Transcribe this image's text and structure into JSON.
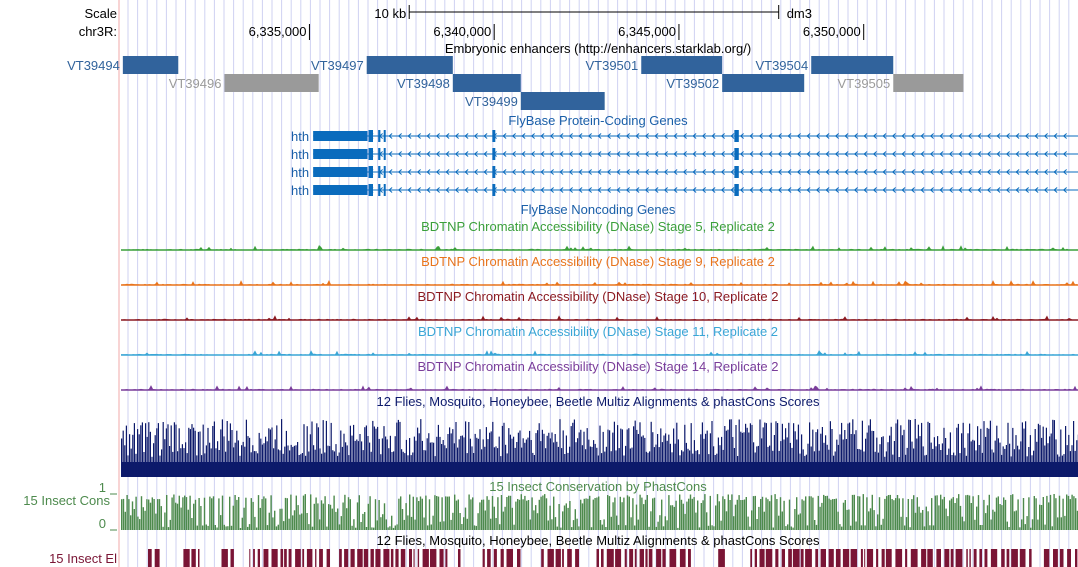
{
  "header": {
    "scale_label": "Scale",
    "scale_bar_label": "10 kb",
    "assembly": "dm3",
    "chrom_label": "chr3R:"
  },
  "chart_data": {
    "type": "genome-browser",
    "chrom": "chr3R",
    "x_range": [
      6329900,
      6355800
    ],
    "ticks": [
      {
        "pos": 6335000,
        "label": "6,335,000"
      },
      {
        "pos": 6340000,
        "label": "6,340,000"
      },
      {
        "pos": 6345000,
        "label": "6,345,000"
      },
      {
        "pos": 6350000,
        "label": "6,350,000"
      }
    ],
    "scale_bar": {
      "start": 6337700,
      "end": 6347700
    },
    "enhancer_track": {
      "title": "Embryonic enhancers (http://enhancers.starklab.org/)",
      "features": [
        {
          "name": "VT39494",
          "start": 6329950,
          "end": 6331450,
          "row": 0,
          "active": true
        },
        {
          "name": "VT39496",
          "start": 6332700,
          "end": 6335250,
          "row": 1,
          "active": false
        },
        {
          "name": "VT39497",
          "start": 6336550,
          "end": 6338880,
          "row": 0,
          "active": true
        },
        {
          "name": "VT39498",
          "start": 6338880,
          "end": 6340720,
          "row": 1,
          "active": true
        },
        {
          "name": "VT39499",
          "start": 6340720,
          "end": 6342990,
          "row": 2,
          "active": true
        },
        {
          "name": "VT39501",
          "start": 6343980,
          "end": 6346170,
          "row": 0,
          "active": true
        },
        {
          "name": "VT39502",
          "start": 6346170,
          "end": 6348390,
          "row": 1,
          "active": true
        },
        {
          "name": "VT39504",
          "start": 6348580,
          "end": 6350800,
          "row": 0,
          "active": true
        },
        {
          "name": "VT39505",
          "start": 6350800,
          "end": 6352700,
          "row": 1,
          "active": false
        }
      ]
    },
    "coding_genes": {
      "title": "FlyBase Protein-Coding Genes",
      "transcripts": [
        {
          "name": "hth",
          "start": 6335100,
          "end": 6355800
        },
        {
          "name": "hth",
          "start": 6335100,
          "end": 6355800
        },
        {
          "name": "hth",
          "start": 6335100,
          "end": 6355800
        },
        {
          "name": "hth",
          "start": 6335100,
          "end": 6355800
        }
      ],
      "exons": [
        {
          "start": 6335100,
          "end": 6336570
        },
        {
          "start": 6336600,
          "end": 6336720
        },
        {
          "start": 6336860,
          "end": 6336920
        },
        {
          "start": 6337010,
          "end": 6337060
        },
        {
          "start": 6339950,
          "end": 6340030
        },
        {
          "start": 6346500,
          "end": 6346620
        }
      ]
    },
    "noncoding_genes": {
      "title": "FlyBase Noncoding Genes"
    },
    "dnase_tracks": [
      {
        "title": "BDTNP Chromatin Accessibility (DNase) Stage 5, Replicate 2",
        "color": "#3a9f3a"
      },
      {
        "title": "BDTNP Chromatin Accessibility (DNase) Stage 9, Replicate 2",
        "color": "#e8741c"
      },
      {
        "title": "BDTNP Chromatin Accessibility (DNase) Stage 10, Replicate 2",
        "color": "#8b1a22"
      },
      {
        "title": "BDTNP Chromatin Accessibility (DNase) Stage 11, Replicate 2",
        "color": "#3aa6d6"
      },
      {
        "title": "BDTNP Chromatin Accessibility (DNase) Stage 14, Replicate 2",
        "color": "#7a3d9a"
      }
    ],
    "multiz_track": {
      "title": "12 Flies, Mosquito, Honeybee, Beetle Multiz Alignments & phastCons Scores",
      "color": "#0d1a6b"
    },
    "cons_track": {
      "title": "15 Insect Conservation by PhastCons",
      "label": "15 Insect Cons",
      "y_max_label": "1",
      "y_min_label": "0",
      "color": "#4d8a4d"
    },
    "elements_track": {
      "title": "12 Flies, Mosquito, Honeybee, Beetle Multiz Alignments & phastCons Scores",
      "label": "15 Insect El",
      "color": "#7a1535"
    }
  },
  "colors": {
    "enhancer_active": "#31639c",
    "enhancer_inactive": "#9a9a9a",
    "gene": "#0a6bbd",
    "gene_label": "#1a5fa8",
    "grid": "#cfd2f2",
    "sidebar_line": "#f2a8a8"
  }
}
